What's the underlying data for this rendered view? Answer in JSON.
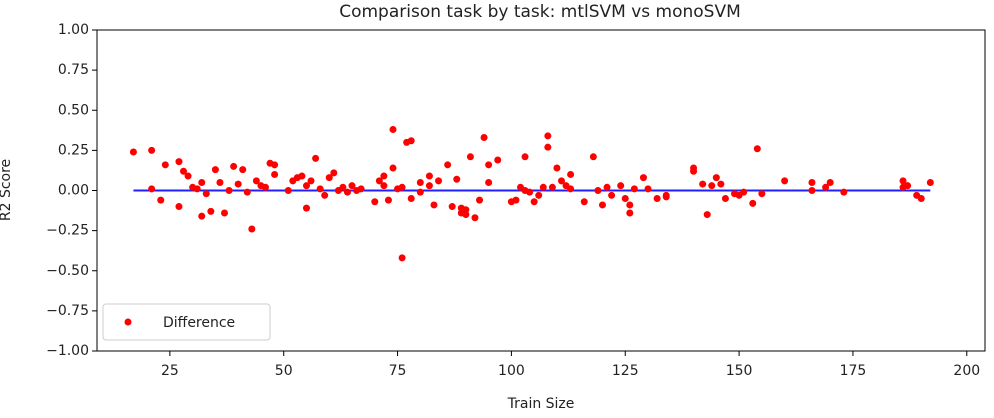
{
  "chart_data": {
    "type": "scatter",
    "title": "Comparison task by task: mtlSVM vs monoSVM",
    "x_label": "Train Size",
    "y_label": "R2 Score",
    "xlim": [
      9,
      204
    ],
    "ylim": [
      -1,
      1
    ],
    "xticks": [
      25,
      50,
      75,
      100,
      125,
      150,
      175,
      200
    ],
    "yticks": [
      {
        "value": 1,
        "label": "1.00"
      },
      {
        "value": 0.75,
        "label": "0.75"
      },
      {
        "value": 0.5,
        "label": "0.50"
      },
      {
        "value": 0.25,
        "label": "0.25"
      },
      {
        "value": 0,
        "label": "0.00"
      },
      {
        "value": -0.25,
        "label": "−0.25"
      },
      {
        "value": -0.5,
        "label": "−0.50"
      },
      {
        "value": -0.75,
        "label": "−0.75"
      },
      {
        "value": -1,
        "label": "−1.00"
      }
    ],
    "legend": "lower left",
    "hline": {
      "y": 0,
      "x": [
        17,
        192
      ],
      "color": "#1f1fff"
    },
    "series": [
      {
        "name": "Difference",
        "color": "#ff0000",
        "x": [
          17,
          21,
          21,
          23,
          24,
          27,
          27,
          28,
          29,
          30,
          31,
          32,
          32,
          33,
          34,
          35,
          36,
          37,
          38,
          39,
          40,
          41,
          42,
          43,
          44,
          45,
          46,
          47,
          48,
          48,
          51,
          52,
          53,
          54,
          55,
          55,
          56,
          57,
          58,
          59,
          60,
          61,
          62,
          63,
          64,
          65,
          66,
          67,
          70,
          71,
          72,
          72,
          73,
          74,
          74,
          75,
          76,
          76,
          77,
          78,
          78,
          80,
          80,
          82,
          82,
          83,
          84,
          86,
          87,
          88,
          89,
          89,
          90,
          90,
          91,
          92,
          93,
          94,
          95,
          95,
          97,
          100,
          101,
          102,
          103,
          103,
          104,
          105,
          106,
          107,
          108,
          108,
          109,
          110,
          111,
          112,
          113,
          113,
          116,
          118,
          119,
          120,
          121,
          122,
          124,
          125,
          126,
          126,
          127,
          129,
          130,
          132,
          134,
          134,
          140,
          140,
          142,
          143,
          144,
          145,
          146,
          147,
          149,
          150,
          151,
          153,
          154,
          155,
          160,
          166,
          166,
          169,
          170,
          173,
          186,
          186,
          187,
          189,
          190,
          192
        ],
        "values": [
          0.24,
          0.25,
          0.01,
          -0.06,
          0.16,
          0.18,
          -0.1,
          0.12,
          0.09,
          0.02,
          0.01,
          -0.16,
          0.05,
          -0.02,
          -0.13,
          0.13,
          0.05,
          -0.14,
          0.0,
          0.15,
          0.04,
          0.13,
          -0.01,
          -0.24,
          0.06,
          0.03,
          0.02,
          0.17,
          0.16,
          0.1,
          0.0,
          0.06,
          0.08,
          0.09,
          -0.11,
          0.03,
          0.06,
          0.2,
          0.01,
          -0.03,
          0.08,
          0.11,
          0.0,
          0.02,
          -0.01,
          0.03,
          0.0,
          0.01,
          -0.07,
          0.06,
          0.09,
          0.03,
          -0.06,
          0.38,
          0.14,
          0.01,
          -0.42,
          0.02,
          0.3,
          0.31,
          -0.05,
          0.05,
          -0.01,
          0.09,
          0.03,
          -0.09,
          0.06,
          0.16,
          -0.1,
          0.07,
          -0.11,
          -0.14,
          -0.12,
          -0.15,
          0.21,
          -0.17,
          -0.06,
          0.33,
          0.05,
          0.16,
          0.19,
          -0.07,
          -0.06,
          0.02,
          0.21,
          0.0,
          -0.01,
          -0.07,
          -0.03,
          0.02,
          0.34,
          0.27,
          0.02,
          0.14,
          0.06,
          0.03,
          0.1,
          0.01,
          -0.07,
          0.21,
          0.0,
          -0.09,
          0.02,
          -0.03,
          0.03,
          -0.05,
          -0.14,
          -0.09,
          0.01,
          0.08,
          0.01,
          -0.05,
          -0.04,
          -0.03,
          0.14,
          0.12,
          0.04,
          -0.15,
          0.03,
          0.08,
          0.04,
          -0.05,
          -0.02,
          -0.03,
          -0.01,
          -0.08,
          0.26,
          -0.02,
          0.06,
          0.05,
          0.0,
          0.02,
          0.05,
          -0.01,
          0.06,
          0.02,
          0.03,
          -0.03,
          -0.05,
          0.05
        ]
      }
    ]
  }
}
